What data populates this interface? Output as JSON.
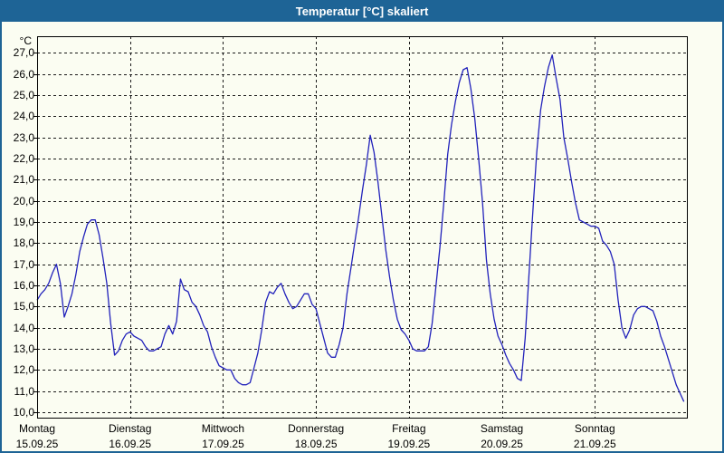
{
  "window": {
    "title": "Temperatur [°C] skaliert"
  },
  "colors": {
    "title_bar": "#1e6496",
    "title_text": "#ffffff",
    "window_background": "#fbfdf2",
    "window_border": "#1e6496",
    "plot_border": "#000000",
    "gridline": "#1a1a1a",
    "line": "#2222bb",
    "label_text": "#000000"
  },
  "chart_data": {
    "type": "line",
    "title": "Temperatur [°C] skaliert",
    "xlabel": "",
    "ylabel": "°C",
    "y_unit_label": "°C",
    "ylim": [
      9.7,
      27.75
    ],
    "grid": "dashed",
    "legend": "none",
    "sampling": "hourly, 7 days (Mon 00:00 - Sun 23:00)",
    "y_ticks": [
      {
        "label": "27,0",
        "value": 27
      },
      {
        "label": "26,0",
        "value": 26
      },
      {
        "label": "25,0",
        "value": 25
      },
      {
        "label": "24,0",
        "value": 24
      },
      {
        "label": "23,0",
        "value": 23
      },
      {
        "label": "22,0",
        "value": 22
      },
      {
        "label": "21,0",
        "value": 21
      },
      {
        "label": "20,0",
        "value": 20
      },
      {
        "label": "19,0",
        "value": 19
      },
      {
        "label": "18,0",
        "value": 18
      },
      {
        "label": "17,0",
        "value": 17
      },
      {
        "label": "16,0",
        "value": 16
      },
      {
        "label": "15,0",
        "value": 15
      },
      {
        "label": "14,0",
        "value": 14
      },
      {
        "label": "13,0",
        "value": 13
      },
      {
        "label": "12,0",
        "value": 12
      },
      {
        "label": "11,0",
        "value": 11
      },
      {
        "label": "10,0",
        "value": 10
      }
    ],
    "x_days": [
      {
        "name": "Montag",
        "date": "15.09.25"
      },
      {
        "name": "Dienstag",
        "date": "16.09.25"
      },
      {
        "name": "Mittwoch",
        "date": "17.09.25"
      },
      {
        "name": "Donnerstag",
        "date": "18.09.25"
      },
      {
        "name": "Freitag",
        "date": "19.09.25"
      },
      {
        "name": "Samstag",
        "date": "20.09.25"
      },
      {
        "name": "Sonntag",
        "date": "21.09.25"
      }
    ],
    "series": [
      {
        "name": "Temperatur",
        "color": "#2222bb",
        "values": [
          15.3,
          15.6,
          15.8,
          16.1,
          16.6,
          17.0,
          16.1,
          14.5,
          15.0,
          15.6,
          16.5,
          17.6,
          18.3,
          18.9,
          19.1,
          19.1,
          18.4,
          17.3,
          16.1,
          14.2,
          12.7,
          12.9,
          13.4,
          13.7,
          13.8,
          13.6,
          13.5,
          13.4,
          13.1,
          12.9,
          12.9,
          13.0,
          13.1,
          13.7,
          14.1,
          13.7,
          14.3,
          16.3,
          15.8,
          15.7,
          15.2,
          15.0,
          14.6,
          14.1,
          13.8,
          13.1,
          12.6,
          12.2,
          12.1,
          12.0,
          12.0,
          11.6,
          11.4,
          11.3,
          11.3,
          11.4,
          12.1,
          12.8,
          13.9,
          15.2,
          15.7,
          15.6,
          15.9,
          16.1,
          15.6,
          15.2,
          14.9,
          15.0,
          15.3,
          15.6,
          15.6,
          15.1,
          14.9,
          14.2,
          13.5,
          12.8,
          12.6,
          12.6,
          13.2,
          14.0,
          15.6,
          16.8,
          18.0,
          19.2,
          20.5,
          21.7,
          23.1,
          22.3,
          20.9,
          19.3,
          17.7,
          16.4,
          15.3,
          14.4,
          13.9,
          13.7,
          13.4,
          13.0,
          12.9,
          12.9,
          12.9,
          13.1,
          14.2,
          16.0,
          17.8,
          19.9,
          22.2,
          23.6,
          24.7,
          25.6,
          26.2,
          26.3,
          25.3,
          23.9,
          22.0,
          19.9,
          17.2,
          15.6,
          14.4,
          13.6,
          13.2,
          12.7,
          12.3,
          12.0,
          11.6,
          11.5,
          13.5,
          16.5,
          19.5,
          22.3,
          24.3,
          25.4,
          26.3,
          26.9,
          25.8,
          24.8,
          23.0,
          22.0,
          20.9,
          19.9,
          19.1,
          19.0,
          18.9,
          18.8,
          18.8,
          18.7,
          18.1,
          17.9,
          17.6,
          17.0,
          15.3,
          14.0,
          13.5,
          13.9,
          14.6,
          14.9,
          15.0,
          15.0,
          14.9,
          14.8,
          14.3,
          13.6,
          13.1,
          12.5,
          11.9,
          11.3,
          10.9,
          10.5
        ]
      }
    ]
  }
}
